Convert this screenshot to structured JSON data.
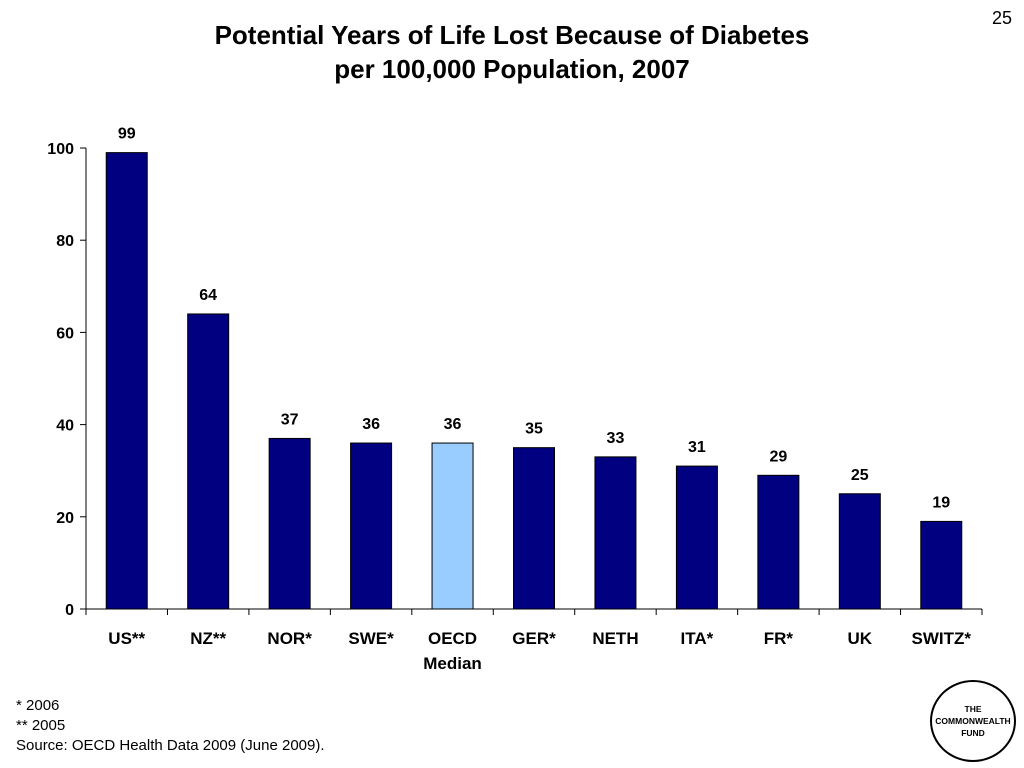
{
  "slide_number": "25",
  "title_line1": "Potential Years of Life Lost Because of Diabetes",
  "title_line2": "per 100,000 Population, 2007",
  "chart_data": {
    "type": "bar",
    "title": "Potential Years of Life Lost Because of Diabetes per 100,000 Population, 2007",
    "categories": [
      "US**",
      "NZ**",
      "NOR*",
      "SWE*",
      "OECD Median",
      "GER*",
      "NETH",
      "ITA*",
      "FR*",
      "UK",
      "SWITZ*"
    ],
    "category_lines": [
      [
        "US**"
      ],
      [
        "NZ**"
      ],
      [
        "NOR*"
      ],
      [
        "SWE*"
      ],
      [
        "OECD",
        "Median"
      ],
      [
        "GER*"
      ],
      [
        "NETH"
      ],
      [
        "ITA*"
      ],
      [
        "FR*"
      ],
      [
        "UK"
      ],
      [
        "SWITZ*"
      ]
    ],
    "values": [
      99,
      64,
      37,
      36,
      36,
      35,
      33,
      31,
      29,
      25,
      19
    ],
    "value_labels": [
      "99",
      "64",
      "37",
      "36",
      "36",
      "35",
      "33",
      "31",
      "29",
      "25",
      "19"
    ],
    "highlight_index": 4,
    "ylim": [
      0,
      100
    ],
    "yticks": [
      0,
      20,
      40,
      60,
      80,
      100
    ],
    "grid": false,
    "colors": {
      "bar": "#000080",
      "highlight": "#99ccff",
      "outline": "#000000"
    }
  },
  "footnotes": [
    "* 2006",
    "** 2005",
    "Source: OECD Health Data 2009 (June 2009)."
  ],
  "logo": [
    "THE",
    "COMMONWEALTH",
    "FUND"
  ]
}
